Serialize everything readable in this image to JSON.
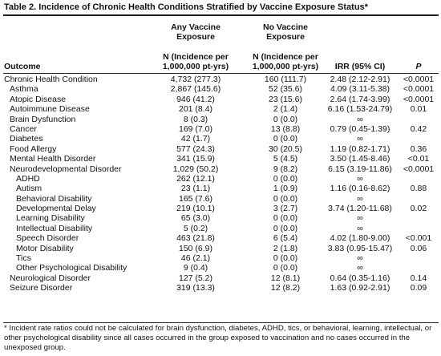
{
  "title": "Table 2. Incidence of Chronic Health Conditions Stratified by Vaccine Exposure Status*",
  "groups": {
    "any": [
      "Any Vaccine",
      "Exposure"
    ],
    "none": [
      "No Vaccine",
      "Exposure"
    ]
  },
  "columns": {
    "outcome": "Outcome",
    "n_any": [
      "N (Incidence per",
      "1,000,000 pt-yrs)"
    ],
    "n_none": [
      "N (Incidence per",
      "1,000,000 pt-yrs)"
    ],
    "irr": "IRR (95% CI)",
    "p": "P"
  },
  "rows": [
    {
      "outcome": "Chronic Health Condition",
      "indent": 0,
      "any": "4,732 (277.3)",
      "none": "160 (111.7)",
      "irr": "2.48 (2.12-2.91)",
      "p": "<0.0001"
    },
    {
      "outcome": "Asthma",
      "indent": 1,
      "any": "2,867 (145.6)",
      "none": "52 (35.6)",
      "irr": "4.09 (3.11-5.38)",
      "p": "<0.0001"
    },
    {
      "outcome": "Atopic Disease",
      "indent": 1,
      "any": "946 (41.2)",
      "none": "23 (15.6)",
      "irr": "2.64 (1.74-3.99)",
      "p": "<0.0001"
    },
    {
      "outcome": "Autoimmune Disease",
      "indent": 1,
      "any": "201 (8.4)",
      "none": "2 (1.4)",
      "irr": "6.16 (1.53-24.79)",
      "p": "0.01"
    },
    {
      "outcome": "Brain Dysfunction",
      "indent": 1,
      "any": "8 (0.3)",
      "none": "0 (0.0)",
      "irr": "∞",
      "p": ""
    },
    {
      "outcome": "Cancer",
      "indent": 1,
      "any": "169 (7.0)",
      "none": "13 (8.8)",
      "irr": "0.79 (0.45-1.39)",
      "p": "0.42"
    },
    {
      "outcome": "Diabetes",
      "indent": 1,
      "any": "42 (1.7)",
      "none": "0 (0.0)",
      "irr": "∞",
      "p": ""
    },
    {
      "outcome": "Food Allergy",
      "indent": 1,
      "any": "577 (24.3)",
      "none": "30 (20.5)",
      "irr": "1.19 (0.82-1.71)",
      "p": "0.36"
    },
    {
      "outcome": "Mental Health Disorder",
      "indent": 1,
      "any": "341 (15.9)",
      "none": "5 (4.5)",
      "irr": "3.50 (1.45-8.46)",
      "p": "<0.01"
    },
    {
      "outcome": "Neurodevelopmental Disorder",
      "indent": 1,
      "any": "1,029 (50.2)",
      "none": "9 (8.2)",
      "irr": "6.15 (3.19-11.86)",
      "p": "<0.0001"
    },
    {
      "outcome": "ADHD",
      "indent": 2,
      "any": "262 (12.1)",
      "none": "0 (0.0)",
      "irr": "∞",
      "p": ""
    },
    {
      "outcome": "Autism",
      "indent": 2,
      "any": "23 (1.1)",
      "none": "1 (0.9)",
      "irr": "1.16 (0.16-8.62)",
      "p": "0.88"
    },
    {
      "outcome": "Behavioral Disability",
      "indent": 2,
      "any": "165 (7.6)",
      "none": "0 (0.0)",
      "irr": "∞",
      "p": ""
    },
    {
      "outcome": "Developmental Delay",
      "indent": 2,
      "any": "219 (10.1)",
      "none": "3 (2.7)",
      "irr": "3.74 (1.20-11.68)",
      "p": "0.02"
    },
    {
      "outcome": "Learning Disability",
      "indent": 2,
      "any": "65 (3.0)",
      "none": "0 (0.0)",
      "irr": "∞",
      "p": ""
    },
    {
      "outcome": "Intellectual Disability",
      "indent": 2,
      "any": "5 (0.2)",
      "none": "0 (0.0)",
      "irr": "∞",
      "p": ""
    },
    {
      "outcome": "Speech Disorder",
      "indent": 2,
      "any": "463 (21.8)",
      "none": "6 (5.4)",
      "irr": "4.02 (1.80-9.00)",
      "p": "<0.001"
    },
    {
      "outcome": "Motor Disability",
      "indent": 2,
      "any": "150 (6.9)",
      "none": "2 (1.8)",
      "irr": "3.83 (0.95-15.47)",
      "p": "0.06"
    },
    {
      "outcome": "Tics",
      "indent": 2,
      "any": "46 (2.1)",
      "none": "0 (0.0)",
      "irr": "∞",
      "p": ""
    },
    {
      "outcome": "Other Psychological Disability",
      "indent": 2,
      "any": "9 (0.4)",
      "none": "0 (0.0)",
      "irr": "∞",
      "p": ""
    },
    {
      "outcome": "Neurological Disorder",
      "indent": 1,
      "any": "127 (5.2)",
      "none": "12 (8.1)",
      "irr": "0.64 (0.35-1.16)",
      "p": "0.14"
    },
    {
      "outcome": "Seizure Disorder",
      "indent": 1,
      "any": "319 (13.3)",
      "none": "12 (8.2)",
      "irr": "1.63 (0.92-2.91)",
      "p": "0.09"
    }
  ],
  "footnote": "* Incident rate ratios could not be calculated for brain dysfunction, diabetes, ADHD, tics, or behavioral, learning, intellectual, or other psychological disability since all cases occurred in the group exposed to vaccination and no cases occurred in the unexposed group."
}
